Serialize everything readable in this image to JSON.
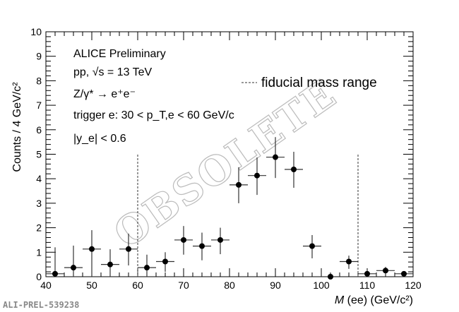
{
  "chart_data": {
    "type": "scatter",
    "xlabel_main": "M",
    "xlabel_rest": " (ee) (GeV/c²)",
    "ylabel": "Counts / 4 GeV/c²",
    "xlim": [
      40,
      120
    ],
    "ylim": [
      0,
      10
    ],
    "x_ticks": [
      "40",
      "50",
      "60",
      "70",
      "80",
      "90",
      "100",
      "110",
      "120"
    ],
    "y_ticks": [
      "0",
      "1",
      "2",
      "3",
      "4",
      "5",
      "6",
      "7",
      "8",
      "9",
      "10"
    ],
    "grid": false,
    "x_halfwidth": 2,
    "points": [
      {
        "x": 42,
        "y": 0.12,
        "ylo": 0,
        "yhi": 1.2
      },
      {
        "x": 46,
        "y": 0.37,
        "ylo": 0,
        "yhi": 1.27
      },
      {
        "x": 50,
        "y": 1.13,
        "ylo": 0,
        "yhi": 1.9
      },
      {
        "x": 54,
        "y": 0.5,
        "ylo": 0,
        "yhi": 1.12
      },
      {
        "x": 58,
        "y": 1.13,
        "ylo": 0.46,
        "yhi": 1.76
      },
      {
        "x": 62,
        "y": 0.37,
        "ylo": 0,
        "yhi": 0.9
      },
      {
        "x": 66,
        "y": 0.62,
        "ylo": 0.2,
        "yhi": 1.0
      },
      {
        "x": 70,
        "y": 1.5,
        "ylo": 0.9,
        "yhi": 2.07
      },
      {
        "x": 74,
        "y": 1.25,
        "ylo": 0.67,
        "yhi": 1.8
      },
      {
        "x": 78,
        "y": 1.5,
        "ylo": 0.92,
        "yhi": 2.0
      },
      {
        "x": 82,
        "y": 3.75,
        "ylo": 3.0,
        "yhi": 4.47
      },
      {
        "x": 86,
        "y": 4.13,
        "ylo": 3.34,
        "yhi": 4.87
      },
      {
        "x": 90,
        "y": 4.88,
        "ylo": 4.03,
        "yhi": 5.7
      },
      {
        "x": 94,
        "y": 4.38,
        "ylo": 3.63,
        "yhi": 5.1
      },
      {
        "x": 98,
        "y": 1.25,
        "ylo": 0.75,
        "yhi": 1.7
      },
      {
        "x": 102,
        "y": 0.0,
        "ylo": 0,
        "yhi": 0
      },
      {
        "x": 106,
        "y": 0.62,
        "ylo": 0.32,
        "yhi": 0.86
      },
      {
        "x": 110,
        "y": 0.12,
        "ylo": 0,
        "yhi": 0.26
      },
      {
        "x": 114,
        "y": 0.25,
        "ylo": 0.17,
        "yhi": 0.4
      },
      {
        "x": 118,
        "y": 0.12,
        "ylo": 0,
        "yhi": 0.2
      }
    ],
    "fiducial_range": {
      "x": [
        60,
        108
      ],
      "ymax": 5
    },
    "legend": {
      "label": "fiducial mass range",
      "placement": "top-right"
    },
    "annotations": {
      "experiment": "ALICE Preliminary",
      "system": "pp, √s = 13 TeV",
      "process": "Z/γ* → e⁺e⁻",
      "trigger": "trigger e: 30 < p_T,e < 60 GeV/c",
      "rapidity": "|y_e| < 0.6"
    },
    "watermark": "OBSOLETE"
  },
  "footer_id": "ALI-PREL-539238"
}
